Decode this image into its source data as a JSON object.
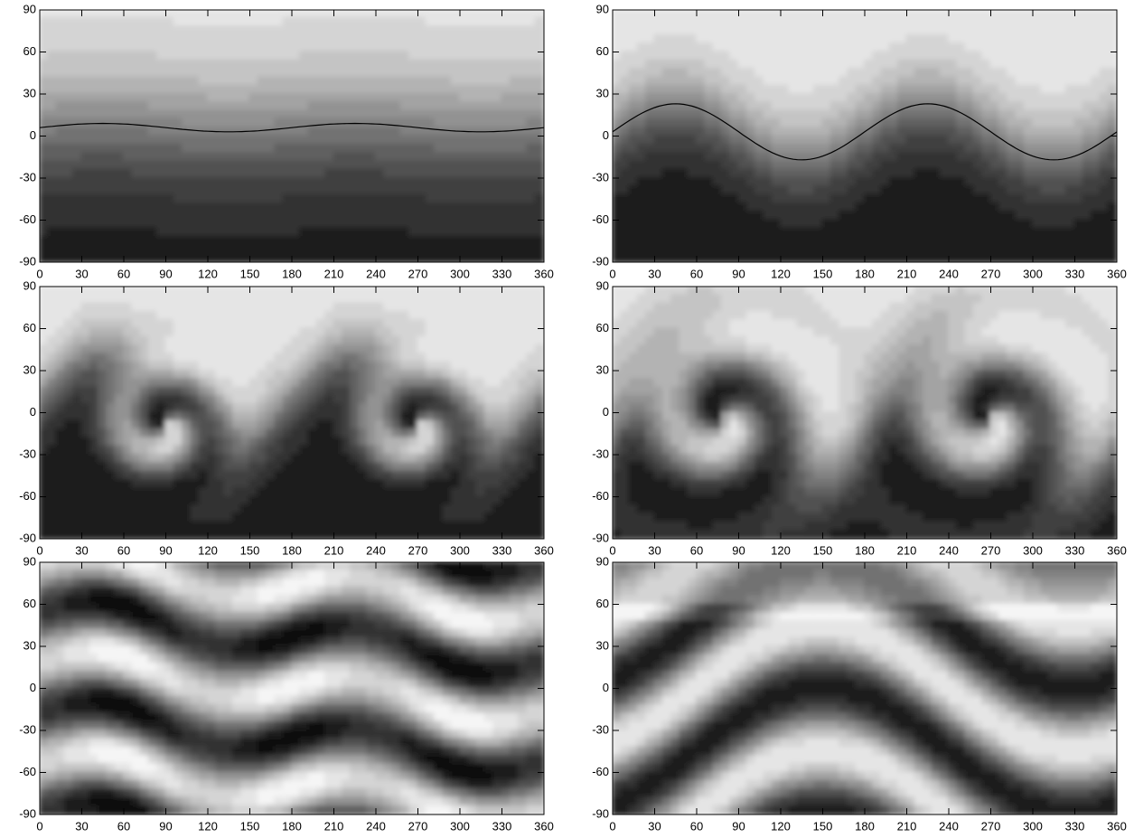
{
  "chart_data": [
    {
      "type": "contour",
      "xlim": [
        0,
        360
      ],
      "ylim": [
        -90,
        90
      ],
      "xticks": [
        0,
        30,
        60,
        90,
        120,
        150,
        180,
        210,
        240,
        270,
        300,
        330,
        360
      ],
      "yticks": [
        -90,
        -60,
        -30,
        0,
        30,
        60,
        90
      ]
    },
    {
      "type": "contour",
      "xlim": [
        0,
        360
      ],
      "ylim": [
        -90,
        90
      ],
      "xticks": [
        0,
        30,
        60,
        90,
        120,
        150,
        180,
        210,
        240,
        270,
        300,
        330,
        360
      ],
      "yticks": [
        -90,
        -60,
        -30,
        0,
        30,
        60,
        90
      ]
    },
    {
      "type": "contour",
      "xlim": [
        0,
        360
      ],
      "ylim": [
        -90,
        90
      ],
      "xticks": [
        0,
        30,
        60,
        90,
        120,
        150,
        180,
        210,
        240,
        270,
        300,
        330,
        360
      ],
      "yticks": [
        -90,
        -60,
        -30,
        0,
        30,
        60,
        90
      ]
    },
    {
      "type": "contour",
      "xlim": [
        0,
        360
      ],
      "ylim": [
        -90,
        90
      ],
      "xticks": [
        0,
        30,
        60,
        90,
        120,
        150,
        180,
        210,
        240,
        270,
        300,
        330,
        360
      ],
      "yticks": [
        -90,
        -60,
        -30,
        0,
        30,
        60,
        90
      ]
    },
    {
      "type": "contour",
      "xlim": [
        0,
        360
      ],
      "ylim": [
        -90,
        90
      ],
      "xticks": [
        0,
        30,
        60,
        90,
        120,
        150,
        180,
        210,
        240,
        270,
        300,
        330,
        360
      ],
      "yticks": [
        -90,
        -60,
        -30,
        0,
        30,
        60,
        90
      ]
    },
    {
      "type": "contour",
      "xlim": [
        0,
        360
      ],
      "ylim": [
        -90,
        90
      ],
      "xticks": [
        0,
        30,
        60,
        90,
        120,
        150,
        180,
        210,
        240,
        270,
        300,
        330,
        360
      ],
      "yticks": [
        -90,
        -60,
        -30,
        0,
        30,
        60,
        90
      ]
    }
  ]
}
